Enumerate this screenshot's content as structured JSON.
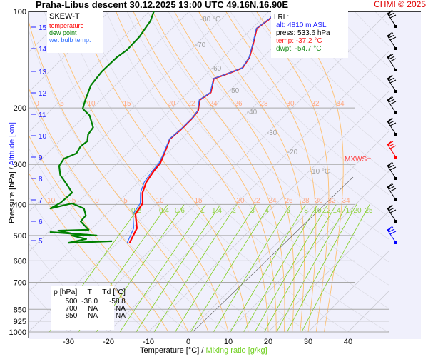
{
  "header": {
    "title": "Praha-Libus   descent   30.12.2025 13:00 UTC  49.16N,16.90E",
    "credit": "CHMI © 2025"
  },
  "legend": {
    "heading": "SKEW-T",
    "temperature": "temperature",
    "dew_point": "dew point",
    "wet_bulb": "wet bulb temp."
  },
  "lrl": {
    "heading": "LRL:",
    "alt": "alt: 4810 m ASL",
    "press": "press: 533.6 hPa",
    "temp": "temp: -37.2 °C",
    "dwpt": "dwpt: -54.7 °C"
  },
  "summary_table": {
    "headers": [
      "p [hPa]",
      "T",
      "Td [°C]"
    ],
    "rows": [
      [
        "500",
        "-38.0",
        "-58.8"
      ],
      [
        "700",
        "NA",
        "NA"
      ],
      [
        "850",
        "NA",
        "NA"
      ]
    ]
  },
  "axis_titles": {
    "x_temperature": "Temperature [°C]",
    "x_sep": " / ",
    "x_mixing": "Mixing ratio [g/kg]",
    "y_pressure": "Pressure [hPa]",
    "y_sep": " / ",
    "y_altitude": "Altitude [km]"
  },
  "mxws_label": "MXWS",
  "colors": {
    "temperature": "#ff0000",
    "dew_point": "#008000",
    "wet_bulb": "#3070ff",
    "isotherm": "#c8c8d0",
    "adiabat": "#ffc070",
    "mixing_ratio": "#80d020",
    "background": "#f0f0fc"
  },
  "chart_data": {
    "type": "line",
    "title": "SKEW-T",
    "xlabel": "Temperature [°C] / Mixing ratio [g/kg]",
    "ylabel": "Pressure [hPa] / Altitude [km]",
    "xlim": [
      -40,
      50
    ],
    "ylim": [
      1000,
      100
    ],
    "x_ticks": [
      "-30",
      "-20",
      "-10",
      "0",
      "10",
      "20",
      "30",
      "40"
    ],
    "pressure_ticks": [
      "100",
      "200",
      "300",
      "400",
      "500",
      "600",
      "700",
      "850",
      "925",
      "1000"
    ],
    "altitude_ticks": [
      "15",
      "14",
      "13",
      "12",
      "11",
      "10",
      "9",
      "8",
      "7",
      "6",
      "5"
    ],
    "isotherm_labels": [
      "-80 °C",
      "-70",
      "-60",
      "-50",
      "-40",
      "-30",
      "-20",
      "-10 °C"
    ],
    "adiabat_labels_200": [
      "0",
      "5",
      "10",
      "15",
      "20",
      "22",
      "24",
      "26",
      "28",
      "30",
      "32",
      "34"
    ],
    "adiabat_labels_400": [
      "-10",
      "-5",
      "0",
      "5",
      "10",
      "15",
      "20",
      "22",
      "24",
      "26",
      "28",
      "30",
      "32",
      "34"
    ],
    "mixing_ratio_labels": [
      "0.2",
      "0.4",
      "0.6",
      "1",
      "1.4",
      "2",
      "3",
      "4",
      "6",
      "8",
      "10",
      "12",
      "14",
      "17",
      "20",
      "25"
    ],
    "series": [
      {
        "name": "temperature",
        "points": [
          [
            527,
            -37.0
          ],
          [
            475,
            -38.8
          ],
          [
            429,
            -42.7
          ],
          [
            397,
            -43.6
          ],
          [
            368,
            -46.3
          ],
          [
            341,
            -48.0
          ],
          [
            315,
            -48.9
          ],
          [
            297,
            -49.3
          ],
          [
            277,
            -50.7
          ],
          [
            250,
            -52.9
          ],
          [
            232,
            -52.5
          ],
          [
            215,
            -52.5
          ],
          [
            204,
            -52.9
          ],
          [
            189,
            -55.2
          ],
          [
            179,
            -54.3
          ],
          [
            162,
            -57.0
          ],
          [
            156,
            -54.6
          ],
          [
            150,
            -52.5
          ],
          [
            139,
            -53.4
          ],
          [
            125,
            -56.1
          ],
          [
            113,
            -58.8
          ],
          [
            105,
            -57.9
          ],
          [
            100,
            -58.2
          ]
        ]
      },
      {
        "name": "wet bulb temp.",
        "points": [
          [
            527,
            -37.6
          ],
          [
            475,
            -39.6
          ],
          [
            429,
            -43.3
          ],
          [
            397,
            -44.2
          ],
          [
            368,
            -46.8
          ],
          [
            341,
            -48.5
          ],
          [
            315,
            -49.3
          ],
          [
            297,
            -49.6
          ],
          [
            277,
            -50.9
          ],
          [
            250,
            -53.0
          ],
          [
            232,
            -52.6
          ],
          [
            215,
            -52.6
          ],
          [
            204,
            -53.0
          ],
          [
            189,
            -55.3
          ],
          [
            179,
            -54.4
          ],
          [
            162,
            -57.1
          ],
          [
            156,
            -54.7
          ],
          [
            150,
            -52.6
          ],
          [
            139,
            -53.5
          ],
          [
            125,
            -56.2
          ],
          [
            113,
            -58.9
          ],
          [
            105,
            -58.0
          ],
          [
            100,
            -58.3
          ]
        ]
      },
      {
        "name": "dew point",
        "points": [
          [
            521,
            -41.8
          ],
          [
            527,
            -52.3
          ],
          [
            513,
            -48.8
          ],
          [
            500,
            -53.4
          ],
          [
            500,
            -47.1
          ],
          [
            488,
            -59.5
          ],
          [
            493,
            -53.9
          ],
          [
            483,
            -57.9
          ],
          [
            480,
            -50.5
          ],
          [
            452,
            -54.6
          ],
          [
            433,
            -54.8
          ],
          [
            412,
            -57.0
          ],
          [
            397,
            -61.3
          ],
          [
            412,
            -65.4
          ],
          [
            395,
            -64.3
          ],
          [
            368,
            -63.9
          ],
          [
            349,
            -66.9
          ],
          [
            324,
            -71.3
          ],
          [
            303,
            -73.9
          ],
          [
            288,
            -74.5
          ],
          [
            277,
            -72.7
          ],
          [
            264,
            -73.4
          ],
          [
            254,
            -73.0
          ],
          [
            242,
            -74.5
          ],
          [
            230,
            -75.0
          ],
          [
            211,
            -78.9
          ],
          [
            201,
            -82.3
          ],
          [
            189,
            -83.8
          ],
          [
            170,
            -86.1
          ],
          [
            154,
            -86.8
          ],
          [
            139,
            -86.6
          ],
          [
            132,
            -85.9
          ],
          [
            120,
            -86.1
          ],
          [
            107,
            -87.3
          ],
          [
            100,
            -88.8
          ]
        ]
      }
    ],
    "wind_barb_levels": 11
  }
}
